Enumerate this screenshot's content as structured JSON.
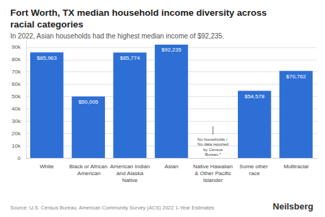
{
  "chart_data": {
    "type": "bar",
    "title": "Fort Worth, TX median household income diversity across racial categories",
    "subtitle": "In 2022, Asian households had the highest median income of $92,235.",
    "categories": [
      "White",
      "Black or African American",
      "American Indian and Alaska Native",
      "Asian",
      "Native Hawaiian & Other Pacific Islander",
      "Some other race",
      "Multiracial"
    ],
    "values": [
      85963,
      50005,
      85774,
      92235,
      null,
      54578,
      70762
    ],
    "value_labels": [
      "$85,963",
      "$50,005",
      "$85,774",
      "$92,235",
      null,
      "$54,578",
      "$70,762"
    ],
    "color": "#2e6fd6",
    "ylim": [
      0,
      95000
    ],
    "yticks": [
      0,
      {
        "value": 10000,
        "label": "10k"
      },
      {
        "value": 20000,
        "label": "20k"
      },
      {
        "value": 30000,
        "label": "30k"
      },
      {
        "value": 40000,
        "label": "40k"
      },
      {
        "value": 50000,
        "label": "50k"
      },
      {
        "value": 60000,
        "label": "60k"
      },
      {
        "value": 70000,
        "label": "70k"
      },
      {
        "value": 80000,
        "label": "80k"
      },
      {
        "value": 90000,
        "label": "90k"
      }
    ],
    "grid": true,
    "data_labels": true,
    "annotation": "No households / No data reported by Census Bureau *",
    "source": "Source: U.S. Census Bureau, American Community Survey (ACS) 2022 1-Year Estimates",
    "brand": "Neilsberg"
  }
}
